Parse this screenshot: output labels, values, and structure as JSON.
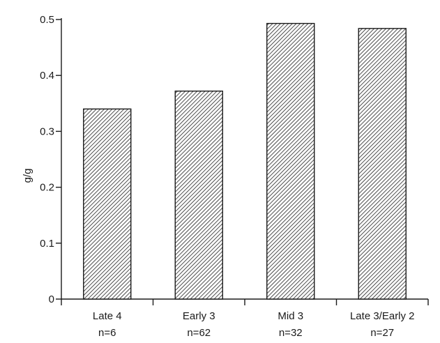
{
  "chart_data": {
    "type": "bar",
    "ylabel": "g/g",
    "xlabel": "",
    "title": "",
    "ylim": [
      0,
      0.5
    ],
    "yticks": [
      0,
      0.1,
      0.2,
      0.3,
      0.4,
      0.5
    ],
    "ytick_labels": [
      "0",
      "0.1",
      "0.2",
      "0.3",
      "0.4",
      "0.5"
    ],
    "categories": [
      {
        "name": "Late 4",
        "n": "n=6"
      },
      {
        "name": "Early 3",
        "n": "n=62"
      },
      {
        "name": "Mid 3",
        "n": "n=32"
      },
      {
        "name": "Late 3/Early 2",
        "n": "n=27"
      }
    ],
    "values": [
      0.34,
      0.372,
      0.493,
      0.484
    ],
    "bar_fill": "diagonal-hatch",
    "grid": false,
    "legend": "none"
  }
}
